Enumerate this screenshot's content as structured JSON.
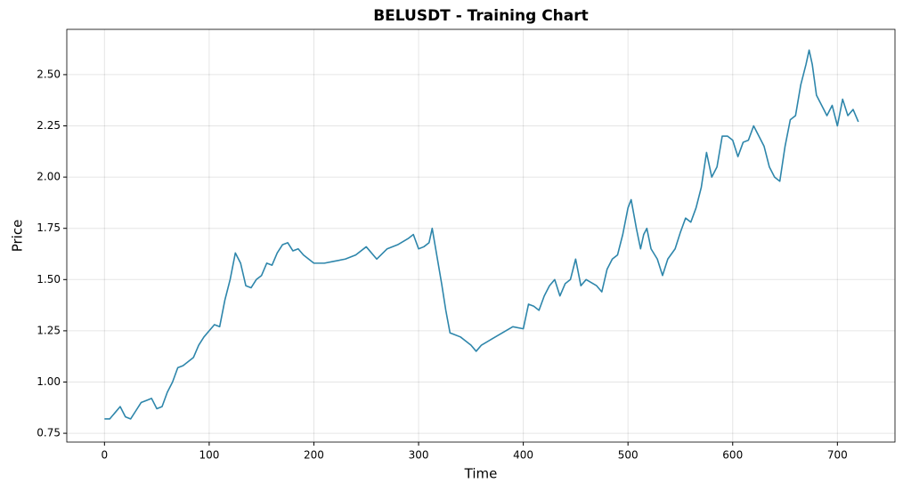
{
  "chart_data": {
    "type": "line",
    "title": "BELUSDT - Training Chart",
    "x_label": "Time",
    "y_label": "Price",
    "grid": true,
    "xlim": [
      -36,
      755
    ],
    "ylim": [
      0.707,
      2.721
    ],
    "xticks": [
      0,
      100,
      200,
      300,
      400,
      500,
      600,
      700
    ],
    "yticks": [
      0.75,
      {
        "value": 1.0,
        "label": "1.00"
      },
      1.25,
      {
        "value": 1.5,
        "label": "1.50"
      },
      1.75,
      {
        "value": 2.0,
        "label": "2.00"
      },
      2.25,
      {
        "value": 2.5,
        "label": "2.50"
      }
    ],
    "x": [
      0,
      5,
      10,
      15,
      20,
      25,
      30,
      35,
      40,
      45,
      50,
      55,
      60,
      65,
      70,
      75,
      80,
      85,
      90,
      95,
      100,
      105,
      110,
      115,
      120,
      125,
      130,
      135,
      140,
      145,
      150,
      155,
      160,
      165,
      170,
      175,
      180,
      185,
      190,
      195,
      200,
      210,
      220,
      230,
      240,
      250,
      260,
      270,
      280,
      290,
      295,
      300,
      305,
      310,
      313,
      318,
      322,
      326,
      330,
      340,
      350,
      355,
      360,
      370,
      380,
      390,
      400,
      405,
      410,
      415,
      420,
      425,
      430,
      435,
      440,
      445,
      450,
      455,
      460,
      470,
      475,
      480,
      485,
      490,
      495,
      500,
      503,
      508,
      512,
      515,
      518,
      522,
      528,
      533,
      538,
      545,
      550,
      555,
      560,
      565,
      570,
      575,
      580,
      585,
      590,
      595,
      600,
      605,
      610,
      615,
      620,
      625,
      630,
      635,
      640,
      645,
      650,
      655,
      660,
      665,
      670,
      673,
      676,
      680,
      685,
      690,
      695,
      700,
      705,
      710,
      715,
      720
    ],
    "series": [
      {
        "name": "Price",
        "color": "#2e86ab",
        "values": [
          0.82,
          0.82,
          0.85,
          0.88,
          0.83,
          0.82,
          0.86,
          0.9,
          0.91,
          0.92,
          0.87,
          0.88,
          0.95,
          1.0,
          1.07,
          1.08,
          1.1,
          1.12,
          1.18,
          1.22,
          1.25,
          1.28,
          1.27,
          1.4,
          1.5,
          1.63,
          1.58,
          1.47,
          1.46,
          1.5,
          1.52,
          1.58,
          1.57,
          1.63,
          1.67,
          1.68,
          1.64,
          1.65,
          1.62,
          1.6,
          1.58,
          1.58,
          1.59,
          1.6,
          1.62,
          1.66,
          1.6,
          1.65,
          1.67,
          1.7,
          1.72,
          1.65,
          1.66,
          1.68,
          1.75,
          1.6,
          1.48,
          1.35,
          1.24,
          1.22,
          1.18,
          1.15,
          1.18,
          1.21,
          1.24,
          1.27,
          1.26,
          1.38,
          1.37,
          1.35,
          1.42,
          1.47,
          1.5,
          1.42,
          1.48,
          1.5,
          1.6,
          1.47,
          1.5,
          1.47,
          1.44,
          1.55,
          1.6,
          1.62,
          1.72,
          1.85,
          1.89,
          1.75,
          1.65,
          1.72,
          1.75,
          1.65,
          1.6,
          1.52,
          1.6,
          1.65,
          1.73,
          1.8,
          1.78,
          1.85,
          1.95,
          2.12,
          2.0,
          2.05,
          2.2,
          2.2,
          2.18,
          2.1,
          2.17,
          2.18,
          2.25,
          2.2,
          2.15,
          2.05,
          2.0,
          1.98,
          2.15,
          2.28,
          2.3,
          2.45,
          2.55,
          2.62,
          2.55,
          2.4,
          2.35,
          2.3,
          2.35,
          2.25,
          2.38,
          2.3,
          2.33,
          2.27
        ]
      }
    ]
  }
}
